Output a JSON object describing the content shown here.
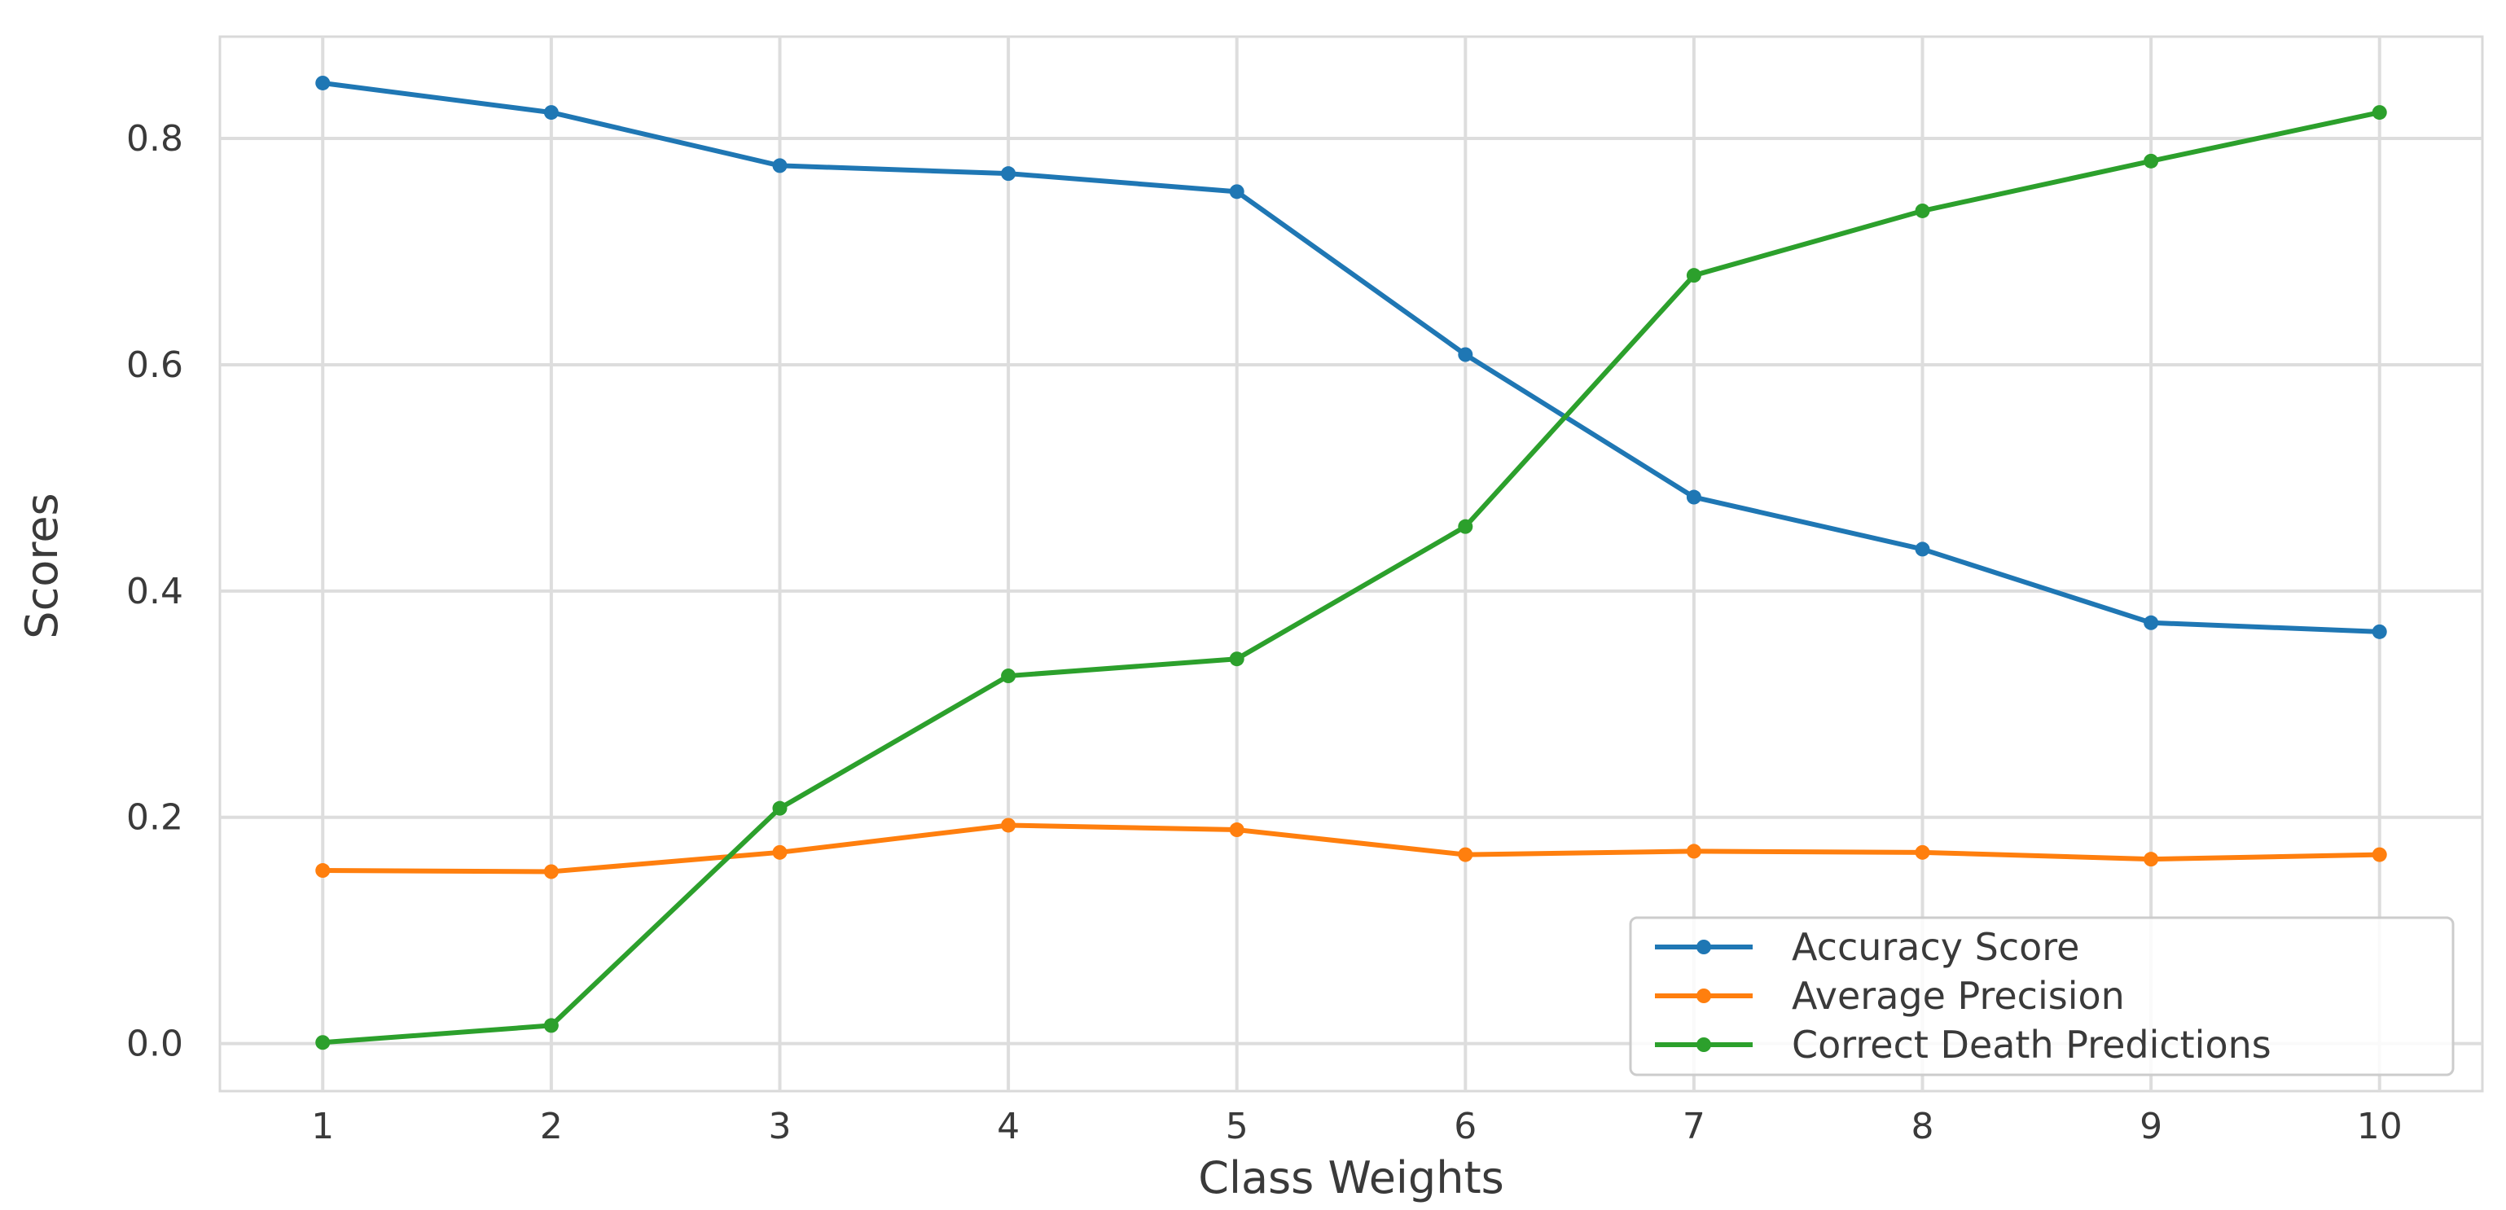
{
  "chart_data": {
    "type": "line",
    "title": "",
    "xlabel": "Class Weights",
    "ylabel": "Scores",
    "x": [
      1,
      2,
      3,
      4,
      5,
      6,
      7,
      8,
      9,
      10
    ],
    "xticks": [
      "1",
      "2",
      "3",
      "4",
      "5",
      "6",
      "7",
      "8",
      "9",
      "10"
    ],
    "yticks": [
      "0.0",
      "0.2",
      "0.4",
      "0.6",
      "0.8"
    ],
    "ytick_values": [
      0.0,
      0.2,
      0.4,
      0.6,
      0.8
    ],
    "xlim": [
      0.55,
      10.45
    ],
    "ylim": [
      -0.042,
      0.89
    ],
    "grid": true,
    "legend_position": "lower right",
    "series": [
      {
        "name": "Accuracy Score",
        "color": "#1f77b4",
        "values": [
          0.849,
          0.823,
          0.776,
          0.769,
          0.753,
          0.609,
          0.483,
          0.437,
          0.372,
          0.364
        ]
      },
      {
        "name": "Average Precision",
        "color": "#ff7f0e",
        "values": [
          0.153,
          0.152,
          0.169,
          0.193,
          0.189,
          0.167,
          0.17,
          0.169,
          0.163,
          0.167
        ]
      },
      {
        "name": "Correct Death Predictions",
        "color": "#2ca02c",
        "values": [
          0.001,
          0.016,
          0.208,
          0.325,
          0.34,
          0.457,
          0.679,
          0.736,
          0.78,
          0.823
        ]
      }
    ]
  }
}
